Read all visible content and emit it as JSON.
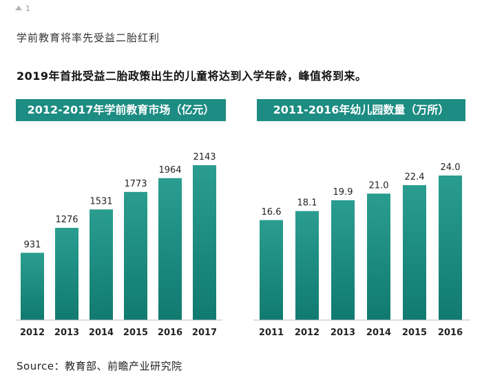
{
  "page": {
    "marker_text": "1",
    "subtitle": "学前教育将率先受益二胎红利",
    "headline": "2019年首批受益二胎政策出生的儿童将达到入学年龄，峰值将到来。",
    "source": "Source：教育部、前瞻产业研究院"
  },
  "colors": {
    "bar_top": "#2a9d90",
    "bar_bottom": "#117a70",
    "title_bg": "#1d8c82"
  },
  "chart_data": [
    {
      "type": "bar",
      "title": "2012-2017年学前教育市场（亿元）",
      "categories": [
        "2012",
        "2013",
        "2014",
        "2015",
        "2016",
        "2017"
      ],
      "values": [
        931,
        1276,
        1531,
        1773,
        1964,
        2143
      ],
      "value_labels": [
        "931",
        "1276",
        "1531",
        "1773",
        "1964",
        "2143"
      ],
      "ylim": [
        0,
        2143
      ],
      "grid": false
    },
    {
      "type": "bar",
      "title": "2011-2016年幼儿园数量（万所）",
      "categories": [
        "2011",
        "2012",
        "2013",
        "2014",
        "2015",
        "2016"
      ],
      "values": [
        16.6,
        18.1,
        19.9,
        21.0,
        22.4,
        24.0
      ],
      "value_labels": [
        "16.6",
        "18.1",
        "19.9",
        "21.0",
        "22.4",
        "24.0"
      ],
      "ylim": [
        0,
        24.0
      ],
      "grid": false
    }
  ]
}
